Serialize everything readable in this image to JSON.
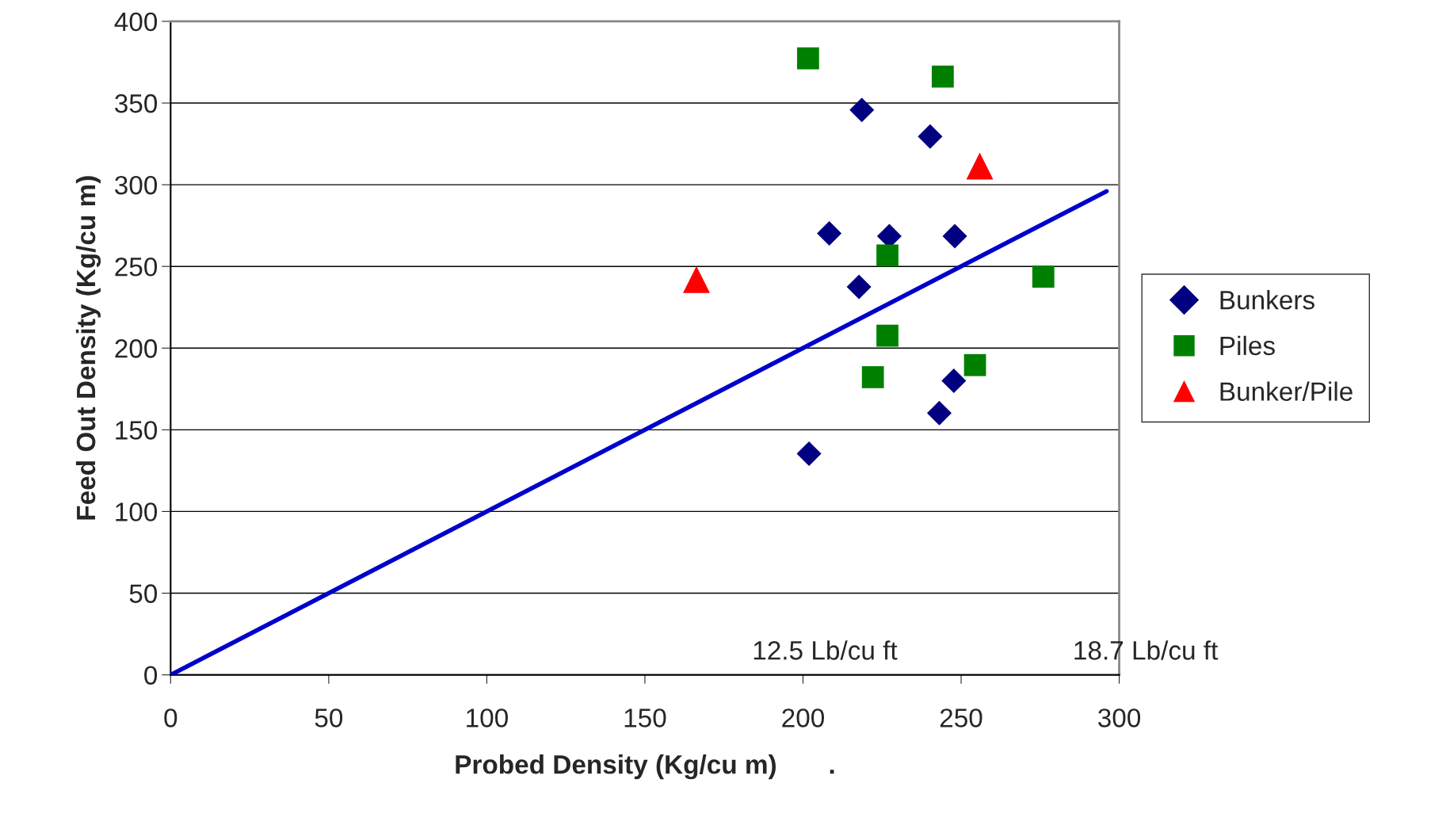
{
  "chart_data": {
    "type": "scatter",
    "xlabel": "Probed Density (Kg/cu m)       .",
    "ylabel": "Feed Out Density (Kg/cu m)",
    "xlim": [
      0,
      300
    ],
    "ylim": [
      0,
      400
    ],
    "xticks": [
      0,
      50,
      100,
      150,
      200,
      250,
      300
    ],
    "yticks": [
      0,
      50,
      100,
      150,
      200,
      250,
      300,
      350,
      400
    ],
    "grid": "y",
    "legend": "right",
    "series": [
      {
        "name": "Bunkers",
        "color": "#000080",
        "marker": "diamond",
        "x": [
          218.6,
          240.2,
          208.3,
          227.3,
          248.0,
          217.7,
          247.7,
          243.1,
          201.9
        ],
        "values": [
          345.8,
          329.5,
          270.2,
          268.5,
          268.5,
          237.5,
          180,
          160.2,
          135.4
        ]
      },
      {
        "name": "Piles",
        "color": "#008000",
        "marker": "square",
        "x": [
          201.6,
          244.2,
          226.7,
          276.0,
          226.7,
          222.1,
          254.4
        ],
        "values": [
          377.4,
          366.2,
          256.7,
          243.7,
          207.6,
          182.2,
          189.6
        ]
      },
      {
        "name": "Bunker/Pile",
        "color": "#ff0000",
        "marker": "triangle",
        "x": [
          166.3,
          255.9
        ],
        "values": [
          242.0,
          311.4
        ]
      },
      {
        "type": "line",
        "color": "#0000cc",
        "marker": "none",
        "x": [
          0,
          296
        ],
        "values": [
          0,
          296
        ]
      }
    ],
    "annotations": [
      "12.5 Lb/cu ft",
      "18.7 Lb/cu ft"
    ]
  }
}
